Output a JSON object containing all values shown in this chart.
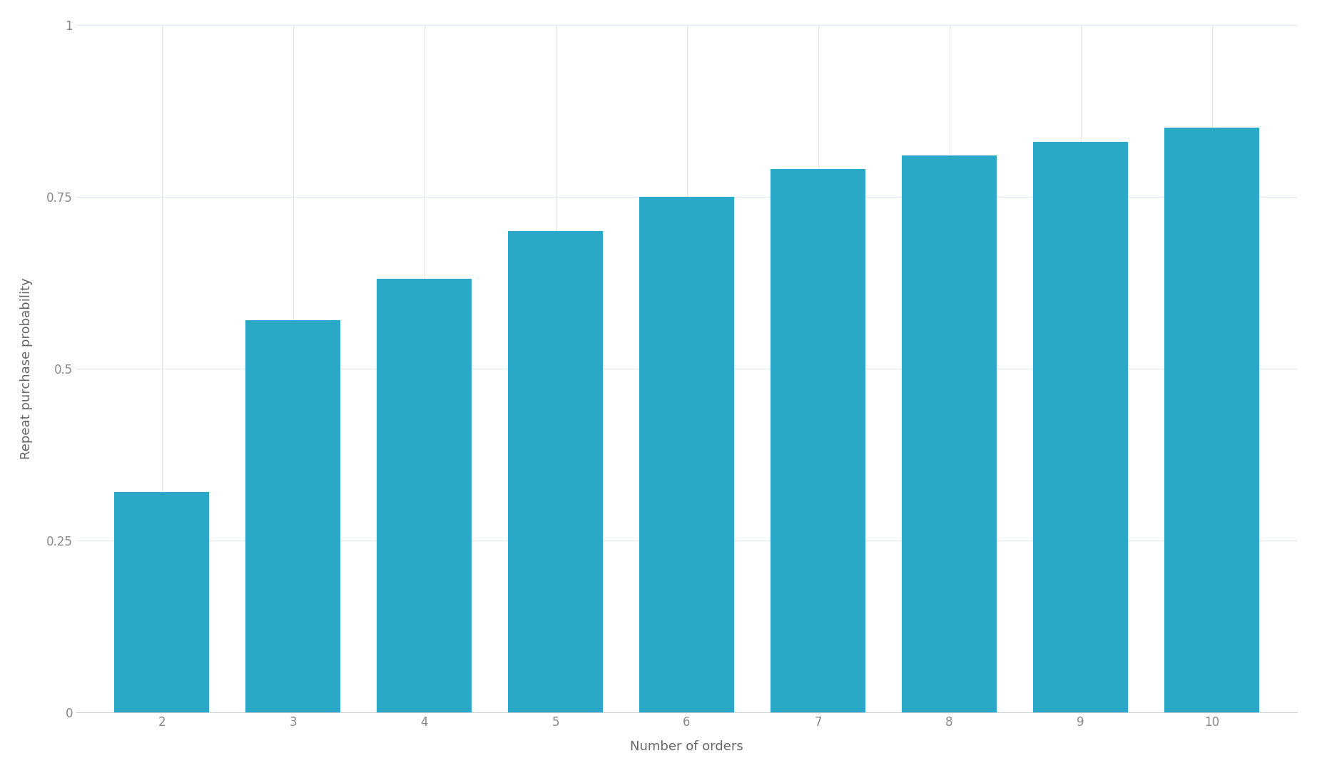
{
  "categories": [
    2,
    3,
    4,
    5,
    6,
    7,
    8,
    9,
    10
  ],
  "values": [
    0.32,
    0.57,
    0.63,
    0.7,
    0.75,
    0.79,
    0.81,
    0.83,
    0.85
  ],
  "bar_color": "#29A8C8",
  "xlabel": "Number of orders",
  "ylabel": "Repeat purchase probability",
  "ylim": [
    0,
    1.0
  ],
  "yticks": [
    0,
    0.25,
    0.5,
    0.75,
    1
  ],
  "ytick_labels": [
    "0",
    "0.25",
    "0.5",
    "0.75",
    "1"
  ],
  "background_color": "#FFFFFF",
  "grid_color": "#E0E8EE",
  "axis_color": "#CCCCCC",
  "label_color": "#666666",
  "tick_color": "#888888",
  "xlabel_fontsize": 13,
  "ylabel_fontsize": 13,
  "tick_fontsize": 12,
  "bar_width": 0.72
}
